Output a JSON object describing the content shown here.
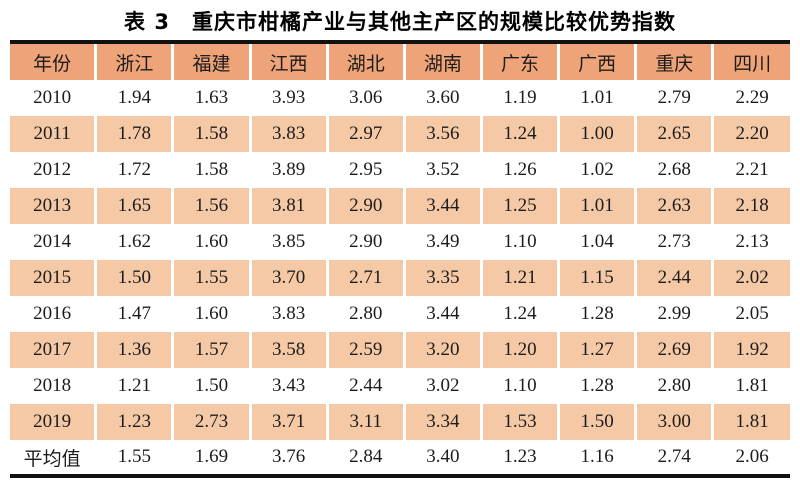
{
  "title": "表 3　重庆市柑橘产业与其他主产区的规模比较优势指数",
  "colors": {
    "header_bg": "#eea379",
    "stripe_bg": "#f6c9a6",
    "rule": "#111111",
    "text": "#1c1c1c"
  },
  "table": {
    "columns": [
      "年份",
      "浙江",
      "福建",
      "江西",
      "湖北",
      "湖南",
      "广东",
      "广西",
      "重庆",
      "四川"
    ],
    "rows": [
      [
        "2010",
        "1.94",
        "1.63",
        "3.93",
        "3.06",
        "3.60",
        "1.19",
        "1.01",
        "2.79",
        "2.29"
      ],
      [
        "2011",
        "1.78",
        "1.58",
        "3.83",
        "2.97",
        "3.56",
        "1.24",
        "1.00",
        "2.65",
        "2.20"
      ],
      [
        "2012",
        "1.72",
        "1.58",
        "3.89",
        "2.95",
        "3.52",
        "1.26",
        "1.02",
        "2.68",
        "2.21"
      ],
      [
        "2013",
        "1.65",
        "1.56",
        "3.81",
        "2.90",
        "3.44",
        "1.25",
        "1.01",
        "2.63",
        "2.18"
      ],
      [
        "2014",
        "1.62",
        "1.60",
        "3.85",
        "2.90",
        "3.49",
        "1.10",
        "1.04",
        "2.73",
        "2.13"
      ],
      [
        "2015",
        "1.50",
        "1.55",
        "3.70",
        "2.71",
        "3.35",
        "1.21",
        "1.15",
        "2.44",
        "2.02"
      ],
      [
        "2016",
        "1.47",
        "1.60",
        "3.83",
        "2.80",
        "3.44",
        "1.24",
        "1.28",
        "2.99",
        "2.05"
      ],
      [
        "2017",
        "1.36",
        "1.57",
        "3.58",
        "2.59",
        "3.20",
        "1.20",
        "1.27",
        "2.69",
        "1.92"
      ],
      [
        "2018",
        "1.21",
        "1.50",
        "3.43",
        "2.44",
        "3.02",
        "1.10",
        "1.28",
        "2.80",
        "1.81"
      ],
      [
        "2019",
        "1.23",
        "2.73",
        "3.71",
        "3.11",
        "3.34",
        "1.53",
        "1.50",
        "3.00",
        "1.81"
      ],
      [
        "平均值",
        "1.55",
        "1.69",
        "3.76",
        "2.84",
        "3.40",
        "1.23",
        "1.16",
        "2.74",
        "2.06"
      ]
    ]
  },
  "chart_data": {
    "type": "table",
    "title": "表3 重庆市柑橘产业与其他主产区的规模比较优势指数",
    "categories": [
      "2010",
      "2011",
      "2012",
      "2013",
      "2014",
      "2015",
      "2016",
      "2017",
      "2018",
      "2019",
      "平均值"
    ],
    "series": [
      {
        "name": "浙江",
        "values": [
          1.94,
          1.78,
          1.72,
          1.65,
          1.62,
          1.5,
          1.47,
          1.36,
          1.21,
          1.23,
          1.55
        ]
      },
      {
        "name": "福建",
        "values": [
          1.63,
          1.58,
          1.58,
          1.56,
          1.6,
          1.55,
          1.6,
          1.57,
          1.5,
          2.73,
          1.69
        ]
      },
      {
        "name": "江西",
        "values": [
          3.93,
          3.83,
          3.89,
          3.81,
          3.85,
          3.7,
          3.83,
          3.58,
          3.43,
          3.71,
          3.76
        ]
      },
      {
        "name": "湖北",
        "values": [
          3.06,
          2.97,
          2.95,
          2.9,
          2.9,
          2.71,
          2.8,
          2.59,
          2.44,
          3.11,
          2.84
        ]
      },
      {
        "name": "湖南",
        "values": [
          3.6,
          3.56,
          3.52,
          3.44,
          3.49,
          3.35,
          3.44,
          3.2,
          3.02,
          3.34,
          3.4
        ]
      },
      {
        "name": "广东",
        "values": [
          1.19,
          1.24,
          1.26,
          1.25,
          1.1,
          1.21,
          1.24,
          1.2,
          1.1,
          1.53,
          1.23
        ]
      },
      {
        "name": "广西",
        "values": [
          1.01,
          1.0,
          1.02,
          1.01,
          1.04,
          1.15,
          1.28,
          1.27,
          1.28,
          1.5,
          1.16
        ]
      },
      {
        "name": "重庆",
        "values": [
          2.79,
          2.65,
          2.68,
          2.63,
          2.73,
          2.44,
          2.99,
          2.69,
          2.8,
          3.0,
          2.74
        ]
      },
      {
        "name": "四川",
        "values": [
          2.29,
          2.2,
          2.21,
          2.18,
          2.13,
          2.02,
          2.05,
          1.92,
          1.81,
          1.81,
          2.06
        ]
      }
    ]
  }
}
